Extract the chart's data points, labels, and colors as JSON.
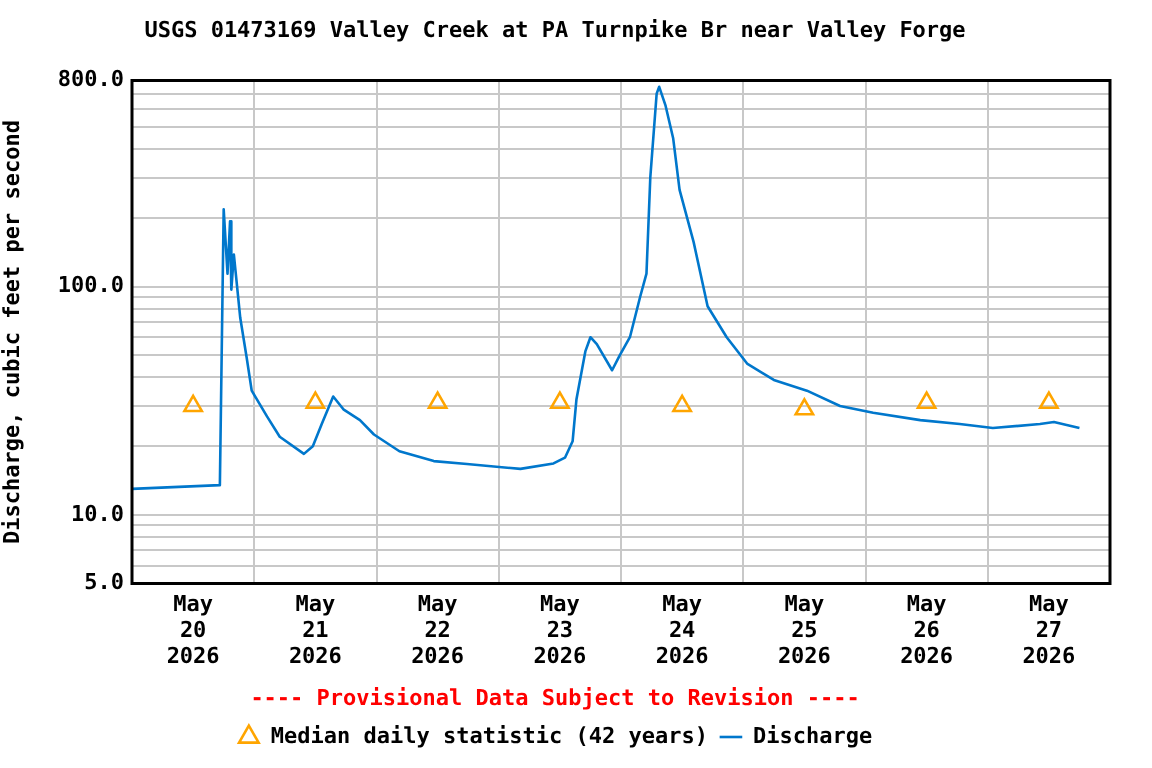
{
  "chart_data": {
    "type": "line",
    "title": "USGS 01473169 Valley Creek at PA Turnpike Br near Valley Forge",
    "ylabel": "Discharge, cubic feet per second",
    "annotations": [
      "---- Provisional Data Subject to Revision ----"
    ],
    "log": true,
    "grid": true,
    "legend": "bottom",
    "ylim": [
      5,
      800
    ],
    "yticks": [
      {
        "value": 5,
        "label": "5.0"
      },
      {
        "value": 6,
        "label": null
      },
      {
        "value": 7,
        "label": null
      },
      {
        "value": 8,
        "label": null
      },
      {
        "value": 9,
        "label": null
      },
      {
        "value": 10,
        "label": "10.0"
      },
      {
        "value": 20,
        "label": null
      },
      {
        "value": 30,
        "label": null
      },
      {
        "value": 40,
        "label": null
      },
      {
        "value": 50,
        "label": null
      },
      {
        "value": 60,
        "label": null
      },
      {
        "value": 70,
        "label": null
      },
      {
        "value": 80,
        "label": null
      },
      {
        "value": 90,
        "label": null
      },
      {
        "value": 100,
        "label": "100.0"
      },
      {
        "value": 200,
        "label": null
      },
      {
        "value": 300,
        "label": null
      },
      {
        "value": 400,
        "label": null
      },
      {
        "value": 500,
        "label": null
      },
      {
        "value": 600,
        "label": null
      },
      {
        "value": 700,
        "label": null
      },
      {
        "value": 800,
        "label": "800.0"
      }
    ],
    "xlim": [
      "2026-05-20T00:00",
      "2026-05-28T00:00"
    ],
    "xticks": [
      {
        "value": "2026-05-20T00:00",
        "label": null
      },
      {
        "value": "2026-05-20T12:00",
        "label": "May 20 2026"
      },
      {
        "value": "2026-05-21T00:00",
        "label": null
      },
      {
        "value": "2026-05-21T12:00",
        "label": "May 21 2026"
      },
      {
        "value": "2026-05-22T00:00",
        "label": null
      },
      {
        "value": "2026-05-22T12:00",
        "label": "May 22 2026"
      },
      {
        "value": "2026-05-23T00:00",
        "label": null
      },
      {
        "value": "2026-05-23T12:00",
        "label": "May 23 2026"
      },
      {
        "value": "2026-05-24T00:00",
        "label": null
      },
      {
        "value": "2026-05-24T12:00",
        "label": "May 24 2026"
      },
      {
        "value": "2026-05-25T00:00",
        "label": null
      },
      {
        "value": "2026-05-25T12:00",
        "label": "May 25 2026"
      },
      {
        "value": "2026-05-26T00:00",
        "label": null
      },
      {
        "value": "2026-05-26T12:00",
        "label": "May 26 2026"
      },
      {
        "value": "2026-05-27T00:00",
        "label": null
      },
      {
        "value": "2026-05-27T12:00",
        "label": "May 27 2026"
      },
      {
        "value": "2026-05-28T00:00",
        "label": null
      }
    ],
    "series": [
      {
        "name": "Median daily statistic (42 years)",
        "type": "scatter",
        "marker": "triangle",
        "color": "#ffa500",
        "x": [
          "2026-05-20T12:00",
          "2026-05-21T12:00",
          "2026-05-22T12:00",
          "2026-05-23T12:00",
          "2026-05-24T12:00",
          "2026-05-25T12:00",
          "2026-05-26T12:00",
          "2026-05-27T12:00"
        ],
        "values": [
          30,
          31,
          31,
          31,
          30,
          29,
          31,
          31
        ]
      },
      {
        "name": "Discharge",
        "marker": "none",
        "color": "#0077cc",
        "x": [
          "2026-05-20T00:00",
          "2026-05-20T17:15",
          "2026-05-20T18:00",
          "2026-05-20T18:45",
          "2026-05-20T19:15",
          "2026-05-20T19:30",
          "2026-05-20T20:00",
          "2026-05-20T21:15",
          "2026-05-20T22:30",
          "2026-05-20T23:30",
          "2026-05-21T02:30",
          "2026-05-21T05:00",
          "2026-05-21T09:45",
          "2026-05-21T11:30",
          "2026-05-21T13:15",
          "2026-05-21T15:30",
          "2026-05-21T17:30",
          "2026-05-21T20:45",
          "2026-05-21T23:30",
          "2026-05-22T04:30",
          "2026-05-22T11:15",
          "2026-05-22T17:45",
          "2026-05-23T04:15",
          "2026-05-23T10:45",
          "2026-05-23T13:00",
          "2026-05-23T14:30",
          "2026-05-23T15:15",
          "2026-05-23T17:00",
          "2026-05-23T18:00",
          "2026-05-23T19:15",
          "2026-05-23T22:15",
          "2026-05-23T23:45",
          "2026-05-24T01:45",
          "2026-05-24T03:45",
          "2026-05-24T05:00",
          "2026-05-24T05:45",
          "2026-05-24T07:00",
          "2026-05-24T07:30",
          "2026-05-24T08:45",
          "2026-05-24T10:15",
          "2026-05-24T11:30",
          "2026-05-24T14:15",
          "2026-05-24T17:00",
          "2026-05-24T20:45",
          "2026-05-25T00:45",
          "2026-05-25T06:00",
          "2026-05-25T12:30",
          "2026-05-25T19:00",
          "2026-05-26T01:30",
          "2026-05-26T10:45",
          "2026-05-26T18:30",
          "2026-05-27T01:00",
          "2026-05-27T10:15",
          "2026-05-27T13:00",
          "2026-05-27T18:00"
        ],
        "values": [
          13,
          13.5,
          218,
          114,
          193,
          97,
          138,
          73,
          49,
          35,
          27,
          22,
          18.5,
          20,
          25,
          33,
          29,
          26,
          22.5,
          19,
          17.2,
          16.7,
          15.9,
          16.8,
          17.8,
          21,
          32,
          52,
          60,
          56,
          43,
          50,
          60,
          90,
          114,
          300,
          700,
          750,
          620,
          445,
          265,
          157,
          82,
          60,
          46,
          39,
          35,
          30,
          28,
          26,
          25,
          24,
          25,
          25.5,
          24
        ]
      }
    ]
  }
}
